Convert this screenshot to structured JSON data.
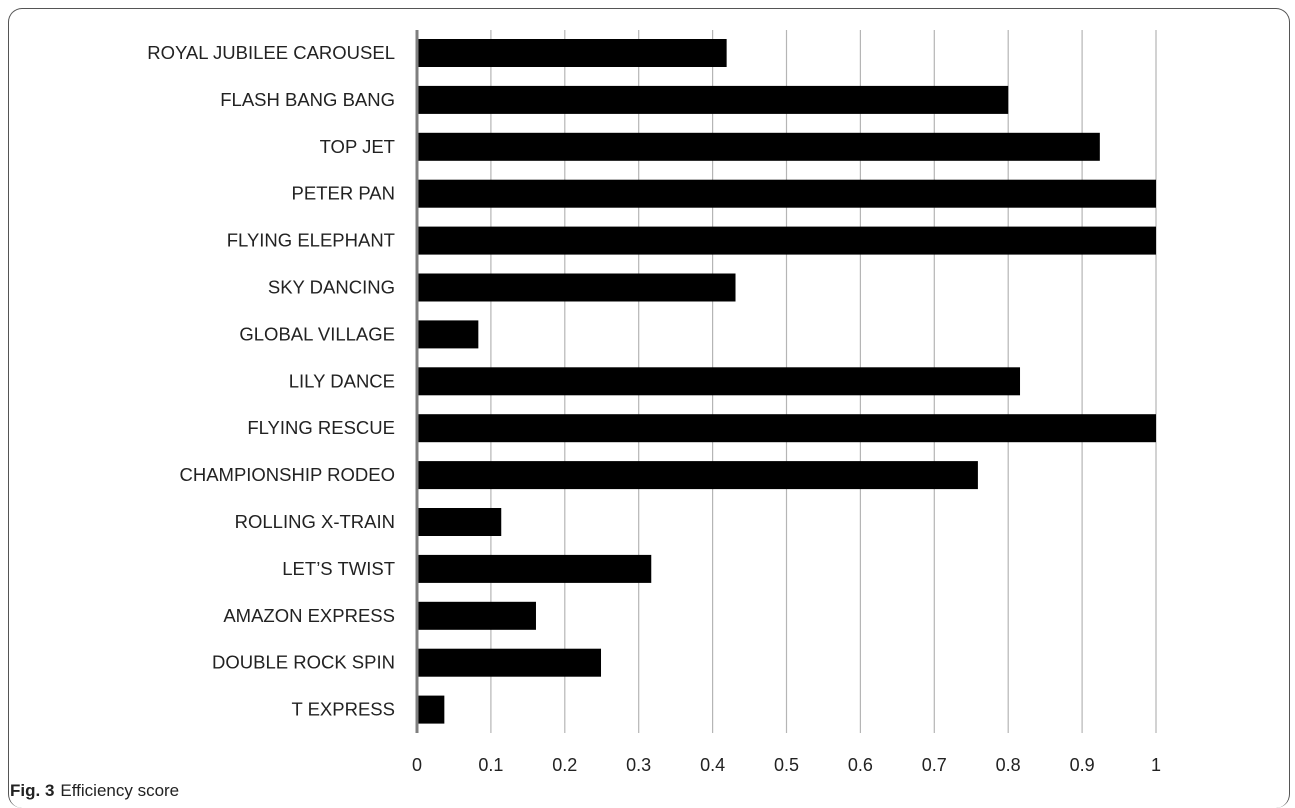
{
  "figure": {
    "label": "Fig. 3",
    "caption": "Efficiency score"
  },
  "chart_data": {
    "type": "bar",
    "orientation": "horizontal",
    "categories": [
      "ROYAL JUBILEE CAROUSEL",
      "FLASH BANG BANG",
      "TOP JET",
      "PETER PAN",
      "FLYING ELEPHANT",
      "SKY DANCING",
      "GLOBAL VILLAGE",
      "LILY DANCE",
      "FLYING RESCUE",
      "CHAMPIONSHIP RODEO",
      "ROLLING X-TRAIN",
      "LET’S TWIST",
      "AMAZON EXPRESS",
      "DOUBLE ROCK SPIN",
      "T EXPRESS"
    ],
    "values": [
      0.419,
      0.8,
      0.924,
      1.0,
      1.0,
      0.431,
      0.083,
      0.816,
      1.0,
      0.759,
      0.114,
      0.317,
      0.161,
      0.249,
      0.037
    ],
    "xlim": [
      0,
      1
    ],
    "xticks": [
      "0",
      "0.1",
      "0.2",
      "0.3",
      "0.4",
      "0.5",
      "0.6",
      "0.7",
      "0.8",
      "0.9",
      "1"
    ],
    "grid": true,
    "bar_color": "#000000",
    "grid_color": "#b5b5b5",
    "axis_color": "#7f7f7f"
  }
}
